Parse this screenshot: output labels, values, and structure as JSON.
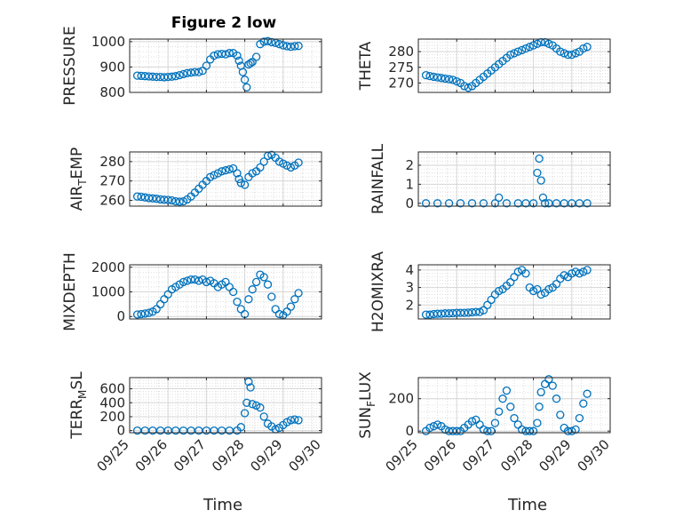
{
  "title": "Figure 2 low",
  "chart_data": [
    {
      "type": "scatter",
      "ylabel": "PRESSURE",
      "ylim": [
        800,
        1010
      ],
      "yticks": [
        800,
        900,
        1000
      ],
      "xlim": [
        0,
        5
      ],
      "x": [
        0.2,
        0.3,
        0.4,
        0.5,
        0.6,
        0.7,
        0.8,
        0.9,
        1.0,
        1.1,
        1.2,
        1.3,
        1.4,
        1.5,
        1.6,
        1.7,
        1.8,
        1.9,
        2.0,
        2.1,
        2.2,
        2.3,
        2.4,
        2.5,
        2.6,
        2.7,
        2.8,
        2.85,
        2.9,
        2.95,
        3.0,
        3.05,
        3.1,
        3.15,
        3.2,
        3.3,
        3.4,
        3.5,
        3.6,
        3.7,
        3.8,
        3.9,
        4.0,
        4.1,
        4.2,
        4.3,
        4.4
      ],
      "y": [
        866,
        865,
        864,
        863,
        862,
        861,
        861,
        860,
        861,
        862,
        864,
        868,
        872,
        876,
        878,
        880,
        880,
        885,
        905,
        930,
        945,
        950,
        952,
        950,
        955,
        955,
        945,
        925,
        905,
        880,
        850,
        820,
        910,
        915,
        920,
        940,
        990,
        1000,
        1002,
        998,
        995,
        990,
        985,
        982,
        980,
        982,
        983
      ]
    },
    {
      "type": "scatter",
      "ylabel": "THETA",
      "ylim": [
        267,
        284
      ],
      "yticks": [
        270,
        275,
        280
      ],
      "xlim": [
        0,
        5
      ],
      "x": [
        0.2,
        0.3,
        0.4,
        0.5,
        0.6,
        0.7,
        0.8,
        0.9,
        1.0,
        1.1,
        1.2,
        1.3,
        1.4,
        1.5,
        1.6,
        1.7,
        1.8,
        1.9,
        2.0,
        2.1,
        2.2,
        2.3,
        2.4,
        2.5,
        2.6,
        2.7,
        2.8,
        2.9,
        3.0,
        3.1,
        3.2,
        3.3,
        3.4,
        3.5,
        3.6,
        3.7,
        3.8,
        3.9,
        4.0,
        4.1,
        4.2,
        4.3,
        4.4
      ],
      "y": [
        272.5,
        272.2,
        272,
        271.8,
        271.6,
        271.4,
        271.2,
        271,
        270.5,
        270,
        269,
        268.5,
        269,
        270,
        271,
        272,
        273,
        274,
        275,
        276,
        277,
        278,
        279,
        279.5,
        280,
        280.5,
        281,
        281.5,
        282,
        282.5,
        283,
        283,
        282.5,
        282,
        281,
        280,
        279.5,
        279,
        279,
        279.5,
        280,
        281,
        281.5
      ]
    },
    {
      "type": "scatter",
      "ylabel": "AIR_TEMP",
      "ylim": [
        257,
        285
      ],
      "yticks": [
        260,
        270,
        280
      ],
      "xlim": [
        0,
        5
      ],
      "x": [
        0.2,
        0.3,
        0.4,
        0.5,
        0.6,
        0.7,
        0.8,
        0.9,
        1.0,
        1.1,
        1.2,
        1.3,
        1.4,
        1.5,
        1.6,
        1.7,
        1.8,
        1.9,
        2.0,
        2.1,
        2.2,
        2.3,
        2.4,
        2.5,
        2.6,
        2.7,
        2.8,
        2.85,
        2.9,
        3.0,
        3.1,
        3.2,
        3.3,
        3.4,
        3.5,
        3.6,
        3.7,
        3.8,
        3.9,
        4.0,
        4.1,
        4.2,
        4.3,
        4.4
      ],
      "y": [
        262,
        261.8,
        261.5,
        261.2,
        261,
        260.8,
        260.5,
        260.3,
        260.2,
        260,
        259.5,
        259.3,
        259.5,
        260.5,
        262,
        264,
        266,
        268,
        270,
        272,
        273,
        274,
        275,
        275.5,
        276,
        276.5,
        274,
        271,
        269,
        268,
        272,
        274,
        275,
        277,
        280,
        283,
        283.5,
        282,
        280,
        279,
        278,
        277,
        278,
        279.5
      ]
    },
    {
      "type": "scatter",
      "ylabel": "RAINFALL",
      "ylim": [
        -0.15,
        2.7
      ],
      "yticks": [
        0,
        1,
        2
      ],
      "xlim": [
        0,
        5
      ],
      "x": [
        0.2,
        0.5,
        0.8,
        1.1,
        1.4,
        1.7,
        2.0,
        2.1,
        2.3,
        2.6,
        2.8,
        3.0,
        3.1,
        3.15,
        3.2,
        3.25,
        3.3,
        3.4,
        3.6,
        3.8,
        4.0,
        4.2,
        4.4
      ],
      "y": [
        0,
        0,
        0,
        0,
        0,
        0,
        0,
        0.3,
        0,
        0,
        0,
        0,
        1.6,
        2.35,
        1.2,
        0.3,
        0,
        0,
        0,
        0,
        0,
        0,
        0
      ]
    },
    {
      "type": "scatter",
      "ylabel": "MIXDEPTH",
      "ylim": [
        -100,
        2100
      ],
      "yticks": [
        0,
        1000,
        2000
      ],
      "xlim": [
        0,
        5
      ],
      "x": [
        0.2,
        0.3,
        0.4,
        0.5,
        0.6,
        0.7,
        0.8,
        0.9,
        1.0,
        1.1,
        1.2,
        1.3,
        1.4,
        1.5,
        1.6,
        1.7,
        1.8,
        1.9,
        2.0,
        2.1,
        2.2,
        2.3,
        2.4,
        2.5,
        2.6,
        2.7,
        2.8,
        2.9,
        3.0,
        3.1,
        3.2,
        3.3,
        3.4,
        3.5,
        3.6,
        3.7,
        3.8,
        3.9,
        4.0,
        4.1,
        4.2,
        4.3,
        4.4
      ],
      "y": [
        80,
        100,
        120,
        150,
        200,
        300,
        500,
        700,
        900,
        1100,
        1200,
        1300,
        1400,
        1450,
        1500,
        1500,
        1450,
        1500,
        1400,
        1450,
        1350,
        1200,
        1300,
        1400,
        1200,
        1000,
        600,
        300,
        100,
        700,
        1100,
        1400,
        1700,
        1600,
        1300,
        800,
        300,
        100,
        50,
        200,
        400,
        700,
        950
      ]
    },
    {
      "type": "scatter",
      "ylabel": "H2OMIXRA",
      "ylim": [
        1.2,
        4.3
      ],
      "yticks": [
        2,
        3,
        4
      ],
      "xlim": [
        0,
        5
      ],
      "x": [
        0.2,
        0.3,
        0.4,
        0.5,
        0.6,
        0.7,
        0.8,
        0.9,
        1.0,
        1.1,
        1.2,
        1.3,
        1.4,
        1.5,
        1.6,
        1.7,
        1.8,
        1.9,
        2.0,
        2.1,
        2.2,
        2.3,
        2.4,
        2.5,
        2.6,
        2.7,
        2.8,
        2.9,
        3.0,
        3.1,
        3.2,
        3.3,
        3.4,
        3.5,
        3.6,
        3.7,
        3.8,
        3.9,
        4.0,
        4.1,
        4.2,
        4.3,
        4.4
      ],
      "y": [
        1.45,
        1.45,
        1.48,
        1.5,
        1.5,
        1.52,
        1.52,
        1.53,
        1.55,
        1.55,
        1.55,
        1.56,
        1.58,
        1.6,
        1.6,
        1.7,
        2.0,
        2.3,
        2.6,
        2.8,
        2.9,
        3.1,
        3.3,
        3.6,
        3.9,
        4.0,
        3.8,
        3.0,
        2.8,
        2.9,
        2.6,
        2.7,
        2.9,
        3.0,
        3.2,
        3.5,
        3.7,
        3.6,
        3.8,
        3.9,
        3.8,
        3.9,
        4.0
      ]
    },
    {
      "type": "scatter",
      "ylabel": "TERR_MSL",
      "ylim": [
        -30,
        760
      ],
      "yticks": [
        0,
        200,
        400,
        600
      ],
      "xlim": [
        0,
        5
      ],
      "x": [
        0.2,
        0.4,
        0.6,
        0.8,
        1.0,
        1.2,
        1.4,
        1.6,
        1.8,
        2.0,
        2.2,
        2.4,
        2.6,
        2.8,
        2.9,
        3.0,
        3.05,
        3.1,
        3.15,
        3.2,
        3.3,
        3.4,
        3.5,
        3.6,
        3.7,
        3.8,
        3.9,
        4.0,
        4.1,
        4.2,
        4.3,
        4.4
      ],
      "y": [
        0,
        0,
        0,
        0,
        0,
        0,
        0,
        0,
        0,
        0,
        0,
        0,
        0,
        0,
        50,
        250,
        400,
        700,
        620,
        380,
        360,
        330,
        200,
        100,
        60,
        20,
        40,
        80,
        120,
        150,
        160,
        150
      ]
    },
    {
      "type": "scatter",
      "ylabel": "SUN_FLUX",
      "ylim": [
        -10,
        330
      ],
      "yticks": [
        0,
        200
      ],
      "xlim": [
        0,
        5
      ],
      "x": [
        0.2,
        0.3,
        0.4,
        0.5,
        0.6,
        0.7,
        0.8,
        0.9,
        1.0,
        1.1,
        1.2,
        1.3,
        1.4,
        1.5,
        1.6,
        1.7,
        1.8,
        1.9,
        2.0,
        2.1,
        2.2,
        2.3,
        2.4,
        2.5,
        2.6,
        2.7,
        2.8,
        2.9,
        3.0,
        3.1,
        3.15,
        3.2,
        3.3,
        3.4,
        3.5,
        3.6,
        3.7,
        3.8,
        3.9,
        4.0,
        4.1,
        4.2,
        4.3,
        4.4
      ],
      "y": [
        0,
        20,
        30,
        40,
        30,
        10,
        0,
        0,
        0,
        0,
        20,
        40,
        60,
        70,
        40,
        10,
        0,
        0,
        50,
        120,
        200,
        250,
        150,
        80,
        40,
        10,
        0,
        0,
        0,
        50,
        150,
        240,
        290,
        320,
        280,
        200,
        100,
        20,
        0,
        0,
        10,
        80,
        170,
        230
      ]
    }
  ],
  "xticklabels": [
    "09/25",
    "09/26",
    "09/27",
    "09/28",
    "09/29",
    "09/30"
  ],
  "xlabel": "Time",
  "colors": {
    "marker": "#0072bd",
    "axis": "#262626"
  }
}
